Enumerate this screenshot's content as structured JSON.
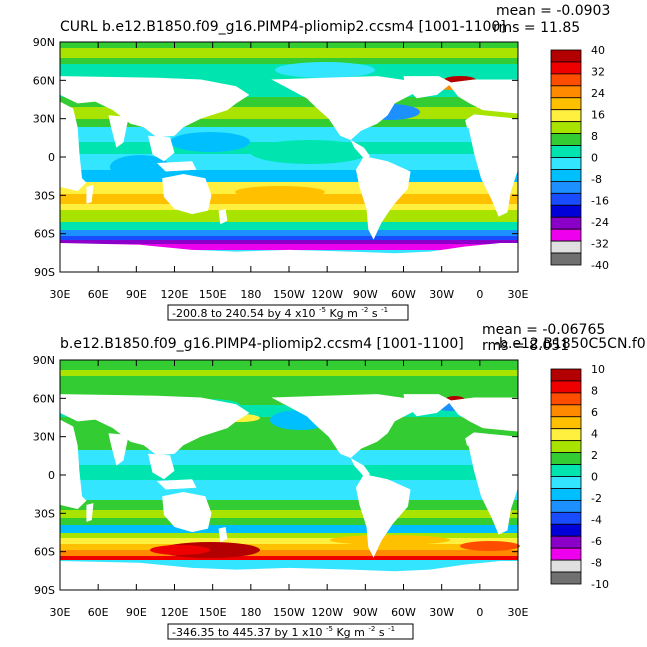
{
  "chart_data": [
    {
      "type": "heatmap",
      "title": "CURL b.e12.B1850.f09_g16.PIMP4-pliomip2.ccsm4 [1001-1100]",
      "stats": {
        "mean": "mean = -0.0903",
        "rms": "rms = 11.85"
      },
      "x_ticks": [
        "30E",
        "60E",
        "90E",
        "120E",
        "150E",
        "180",
        "150W",
        "120W",
        "90W",
        "60W",
        "30W",
        "0",
        "30E"
      ],
      "y_ticks": [
        "90N",
        "60N",
        "30N",
        "0",
        "30S",
        "60S",
        "90S"
      ],
      "range_label": "-200.8 to 240.54 by 4 x10",
      "range_exp": "-5",
      "range_units_a": "Kg m",
      "range_units_b": "s",
      "colorbar_labels": [
        "40",
        "32",
        "24",
        "16",
        "8",
        "0",
        "-8",
        "-16",
        "-24",
        "-32",
        "-40"
      ],
      "colorbar_colors": [
        "#b30000",
        "#ee0000",
        "#ff4d00",
        "#ff8a00",
        "#ffc000",
        "#fff040",
        "#a8e400",
        "#33cc33",
        "#00e5b0",
        "#33e5ff",
        "#00bfff",
        "#1c90ff",
        "#1a4cff",
        "#0000d8",
        "#8a00c8",
        "#ee00ee",
        "#e0e0e0",
        "#707070"
      ],
      "ylim": [
        -90,
        90
      ]
    },
    {
      "type": "heatmap",
      "title": "b.e12.B1850.f09_g16.PIMP4-pliomip2.ccsm4 [1001-1100]",
      "ref_title": "-b.e12.B1850C5CN.f0",
      "stats": {
        "mean": "mean = -0.06765",
        "rms": "rms = 8.051"
      },
      "x_ticks": [
        "30E",
        "60E",
        "90E",
        "120E",
        "150E",
        "180",
        "150W",
        "120W",
        "90W",
        "60W",
        "30W",
        "0",
        "30E"
      ],
      "y_ticks": [
        "90N",
        "60N",
        "30N",
        "0",
        "30S",
        "60S",
        "90S"
      ],
      "range_label": "-346.35 to 445.37 by 1 x10",
      "range_exp": "-5",
      "range_units_a": "Kg m",
      "range_units_b": "s",
      "colorbar_labels": [
        "10",
        "8",
        "6",
        "4",
        "2",
        "0",
        "-2",
        "-4",
        "-6",
        "-8",
        "-10"
      ],
      "colorbar_colors": [
        "#b30000",
        "#ee0000",
        "#ff4d00",
        "#ff8a00",
        "#ffc000",
        "#fff040",
        "#a8e400",
        "#33cc33",
        "#00e5b0",
        "#33e5ff",
        "#00bfff",
        "#1c90ff",
        "#1a4cff",
        "#0000d8",
        "#8a00c8",
        "#ee00ee",
        "#e0e0e0",
        "#707070"
      ],
      "ylim": [
        -90,
        90
      ]
    }
  ]
}
